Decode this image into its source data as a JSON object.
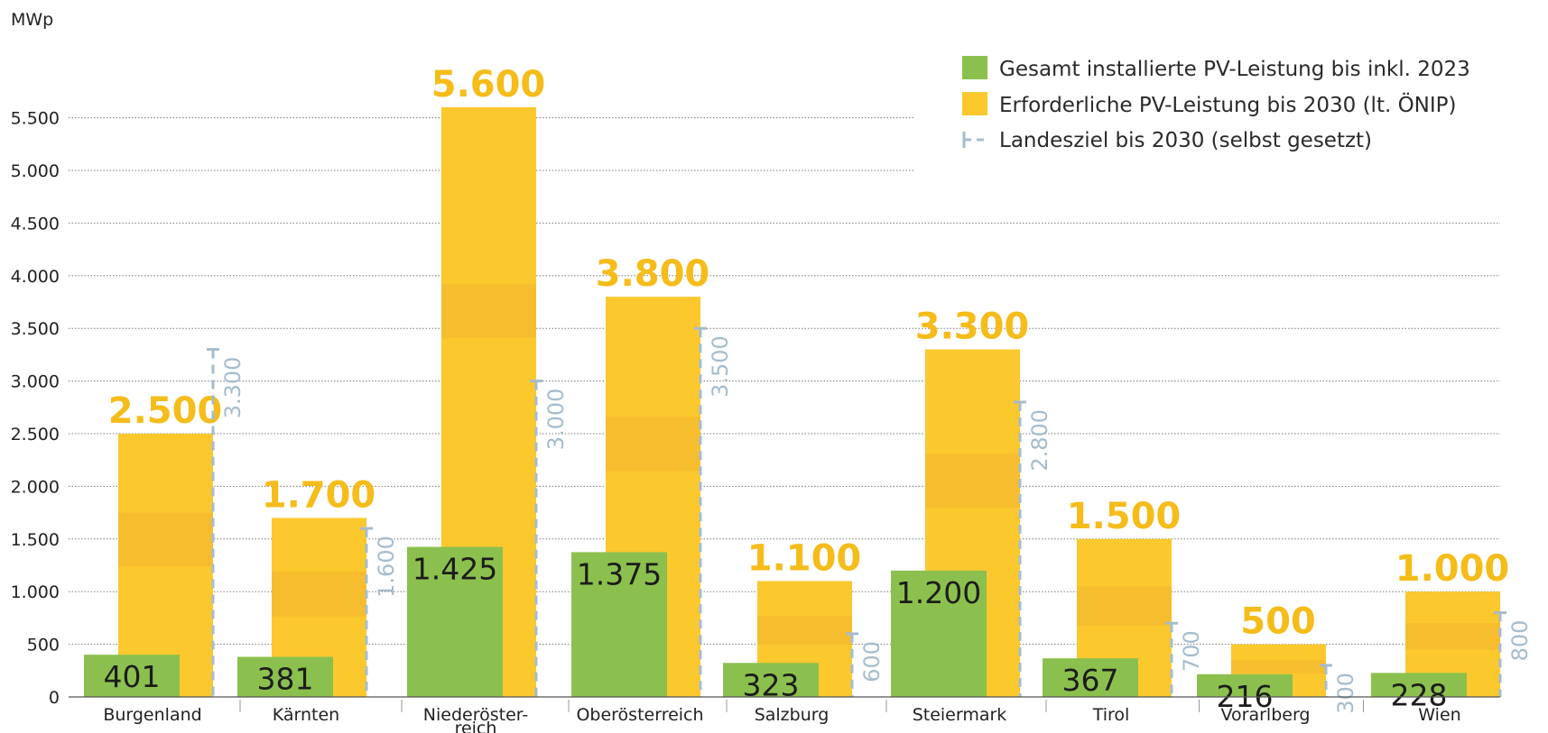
{
  "chart_data": {
    "type": "bar",
    "unit_label": "MWp",
    "categories": [
      "Burgenland",
      "Kärnten",
      "Niederöster-reich",
      "Oberösterreich",
      "Salzburg",
      "Steiermark",
      "Tirol",
      "Vorarlberg",
      "Wien"
    ],
    "category_lines": [
      [
        "Burgenland"
      ],
      [
        "Kärnten"
      ],
      [
        "Niederöster-",
        "reich"
      ],
      [
        "Oberösterreich"
      ],
      [
        "Salzburg"
      ],
      [
        "Steiermark"
      ],
      [
        "Tirol"
      ],
      [
        "Vorarlberg"
      ],
      [
        "Wien"
      ]
    ],
    "series": [
      {
        "name": "Gesamt installierte PV-Leistung bis inkl. 2023",
        "values": [
          401,
          381,
          1425,
          1375,
          323,
          1200,
          367,
          216,
          228
        ],
        "labels": [
          "401",
          "381",
          "1.425",
          "1.375",
          "323",
          "1.200",
          "367",
          "216",
          "228"
        ],
        "color": "#8cc04e"
      },
      {
        "name": "Erforderliche PV-Leistung bis 2030 (lt. ÖNIP)",
        "values": [
          2500,
          1700,
          5600,
          3800,
          1100,
          3300,
          1500,
          500,
          1000
        ],
        "labels": [
          "2.500",
          "1.700",
          "5.600",
          "3.800",
          "1.100",
          "3.300",
          "1.500",
          "500",
          "1.000"
        ],
        "color": "#fbc82e"
      },
      {
        "name": "Landesziel bis 2030 (selbst gesetzt)",
        "values": [
          3300,
          1600,
          3000,
          3500,
          600,
          2800,
          700,
          300,
          800
        ],
        "labels": [
          "3.300",
          "1.600",
          "3.000",
          "3.500",
          "600",
          "2.800",
          "700",
          "300",
          "800"
        ],
        "color": "#a5bccd"
      }
    ],
    "yticks": [
      0,
      500,
      1000,
      1500,
      2000,
      2500,
      3000,
      3500,
      4000,
      4500,
      5000,
      5500
    ],
    "ytick_labels": [
      "0",
      "500",
      "1.000",
      "1.500",
      "2.000",
      "2.500",
      "3.000",
      "3.500",
      "4.000",
      "4.500",
      "5.000",
      "5.500"
    ],
    "ylim": [
      0,
      5800
    ],
    "grid": true,
    "legend_position": "top-right"
  }
}
